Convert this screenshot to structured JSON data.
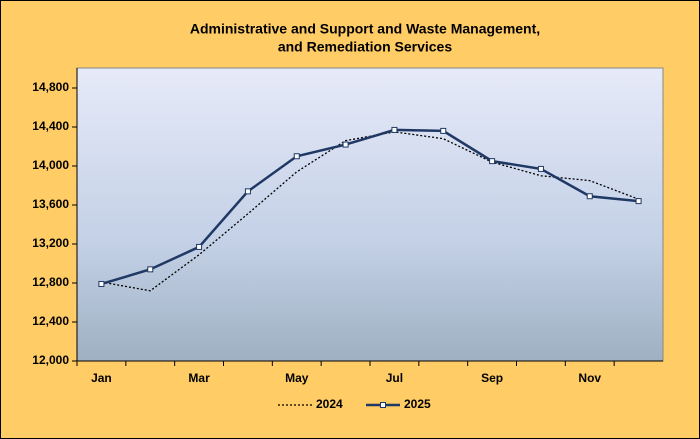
{
  "chart_data": {
    "type": "line",
    "title": [
      "Administrative  and  Support and  Waste Management,",
      "and  Remediation  Services"
    ],
    "categories": [
      "Jan",
      null,
      "Mar",
      null,
      "May",
      null,
      "Jul",
      null,
      "Sep",
      null,
      "Nov",
      null
    ],
    "series": [
      {
        "name": "2024",
        "color": "#000000",
        "style": "dotted",
        "marker": "none",
        "values": [
          12810,
          12720,
          13090,
          13510,
          13940,
          14260,
          14350,
          14280,
          14040,
          13900,
          13850,
          13660
        ]
      },
      {
        "name": "2025",
        "color": "#1f3864",
        "style": "solid",
        "marker": "square",
        "values": [
          12790,
          12940,
          13170,
          13740,
          14100,
          14220,
          14370,
          14360,
          14050,
          13970,
          13690,
          13640
        ]
      }
    ],
    "ylim": [
      12000,
      14800
    ],
    "yticks": [
      {
        "value": 12000,
        "label": "12,000"
      },
      {
        "value": 12400,
        "label": "12,400"
      },
      {
        "value": 12800,
        "label": "12,800"
      },
      {
        "value": 13200,
        "label": "13,200"
      },
      {
        "value": 13600,
        "label": "13,600"
      },
      {
        "value": 14000,
        "label": "14,000"
      },
      {
        "value": 14400,
        "label": "14,400"
      },
      {
        "value": 14800,
        "label": "14,800"
      }
    ],
    "grid": false,
    "legend": "bottom"
  }
}
